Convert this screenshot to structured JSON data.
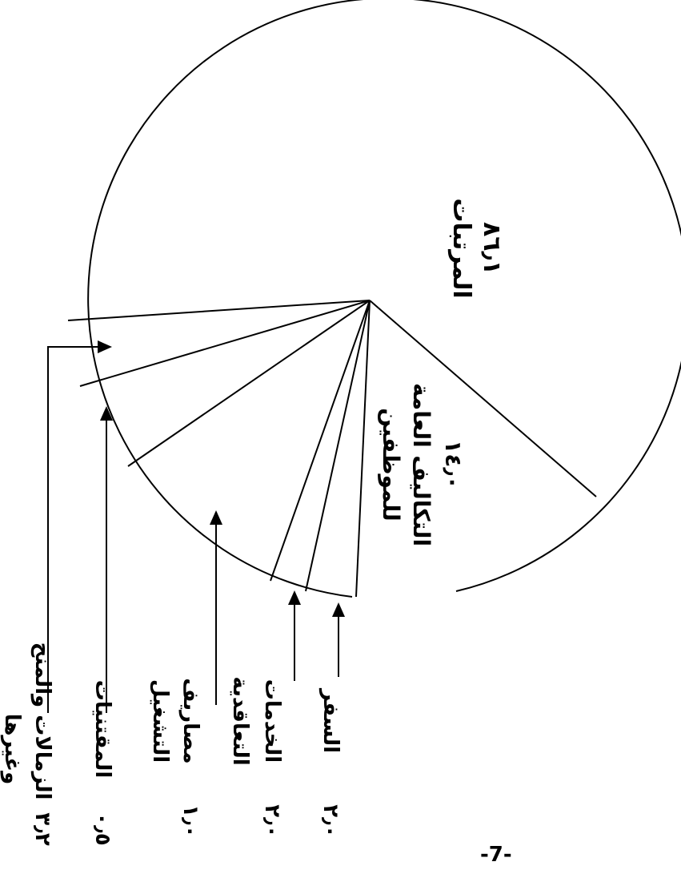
{
  "chart_data": {
    "type": "pie",
    "title": "",
    "unit": "%",
    "slices": [
      {
        "label": "المرتبات",
        "value_text": "٨٦٫١",
        "value": 86.1
      },
      {
        "label": "التكاليف العامة للموظفين",
        "value_text": "١٤٫٠",
        "value": 14.0
      },
      {
        "label": "السفر",
        "value_text": "٢٫٠",
        "value": 2.0
      },
      {
        "label": "الخدمات",
        "value_text": "٢٫٠",
        "value": 2.0
      },
      {
        "label": "التعاقدية",
        "value_text": "",
        "value": 0.5
      },
      {
        "label": "مصاريف التشغيل",
        "value_text": "١٫٠",
        "value": 1.0
      },
      {
        "label": "المقتنيات",
        "value_text": "٠٫٥",
        "value": 0.5
      },
      {
        "label": "الزمالات والمنح وغيرها",
        "value_text": "٣٫٢",
        "value": 3.2
      }
    ]
  },
  "page_number": "-7-"
}
